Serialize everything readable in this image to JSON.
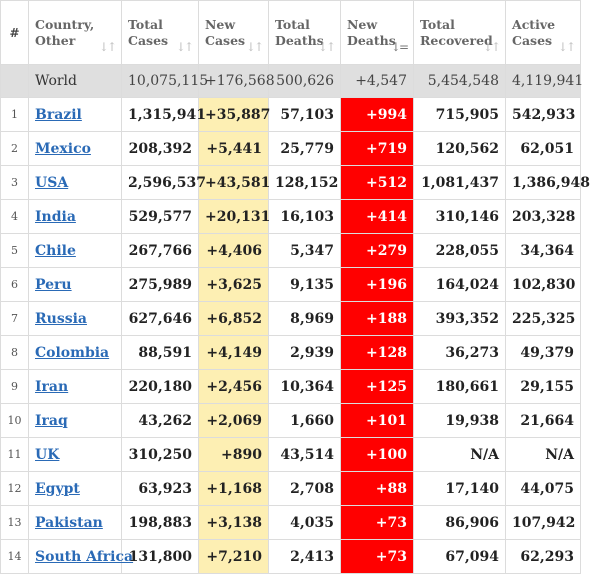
{
  "header": {
    "index": "#",
    "country": "Country, Other",
    "total_cases": "Total Cases",
    "new_cases": "New Cases",
    "total_deaths": "Total Deaths",
    "new_deaths": "New Deaths",
    "total_recovered": "Total Recovered",
    "active_cases": "Active Cases",
    "sort_glyph": "↓↑",
    "sort_active_glyph": "↓="
  },
  "world": {
    "name": "World",
    "total_cases": "10,075,115",
    "new_cases": "+176,568",
    "total_deaths": "500,626",
    "new_deaths": "+4,547",
    "total_recovered": "5,454,548",
    "active_cases": "4,119,941"
  },
  "rows": [
    {
      "idx": "1",
      "country": "Brazil",
      "total_cases": "1,315,941",
      "new_cases": "+35,887",
      "total_deaths": "57,103",
      "new_deaths": "+994",
      "total_recovered": "715,905",
      "active_cases": "542,933"
    },
    {
      "idx": "2",
      "country": "Mexico",
      "total_cases": "208,392",
      "new_cases": "+5,441",
      "total_deaths": "25,779",
      "new_deaths": "+719",
      "total_recovered": "120,562",
      "active_cases": "62,051"
    },
    {
      "idx": "3",
      "country": "USA",
      "total_cases": "2,596,537",
      "new_cases": "+43,581",
      "total_deaths": "128,152",
      "new_deaths": "+512",
      "total_recovered": "1,081,437",
      "active_cases": "1,386,948"
    },
    {
      "idx": "4",
      "country": "India",
      "total_cases": "529,577",
      "new_cases": "+20,131",
      "total_deaths": "16,103",
      "new_deaths": "+414",
      "total_recovered": "310,146",
      "active_cases": "203,328"
    },
    {
      "idx": "5",
      "country": "Chile",
      "total_cases": "267,766",
      "new_cases": "+4,406",
      "total_deaths": "5,347",
      "new_deaths": "+279",
      "total_recovered": "228,055",
      "active_cases": "34,364"
    },
    {
      "idx": "6",
      "country": "Peru",
      "total_cases": "275,989",
      "new_cases": "+3,625",
      "total_deaths": "9,135",
      "new_deaths": "+196",
      "total_recovered": "164,024",
      "active_cases": "102,830"
    },
    {
      "idx": "7",
      "country": "Russia",
      "total_cases": "627,646",
      "new_cases": "+6,852",
      "total_deaths": "8,969",
      "new_deaths": "+188",
      "total_recovered": "393,352",
      "active_cases": "225,325"
    },
    {
      "idx": "8",
      "country": "Colombia",
      "total_cases": "88,591",
      "new_cases": "+4,149",
      "total_deaths": "2,939",
      "new_deaths": "+128",
      "total_recovered": "36,273",
      "active_cases": "49,379"
    },
    {
      "idx": "9",
      "country": "Iran",
      "total_cases": "220,180",
      "new_cases": "+2,456",
      "total_deaths": "10,364",
      "new_deaths": "+125",
      "total_recovered": "180,661",
      "active_cases": "29,155"
    },
    {
      "idx": "10",
      "country": "Iraq",
      "total_cases": "43,262",
      "new_cases": "+2,069",
      "total_deaths": "1,660",
      "new_deaths": "+101",
      "total_recovered": "19,938",
      "active_cases": "21,664"
    },
    {
      "idx": "11",
      "country": "UK",
      "total_cases": "310,250",
      "new_cases": "+890",
      "total_deaths": "43,514",
      "new_deaths": "+100",
      "total_recovered": "N/A",
      "active_cases": "N/A"
    },
    {
      "idx": "12",
      "country": "Egypt",
      "total_cases": "63,923",
      "new_cases": "+1,168",
      "total_deaths": "2,708",
      "new_deaths": "+88",
      "total_recovered": "17,140",
      "active_cases": "44,075"
    },
    {
      "idx": "13",
      "country": "Pakistan",
      "total_cases": "198,883",
      "new_cases": "+3,138",
      "total_deaths": "4,035",
      "new_deaths": "+73",
      "total_recovered": "86,906",
      "active_cases": "107,942"
    },
    {
      "idx": "14",
      "country": "South Africa",
      "total_cases": "131,800",
      "new_cases": "+7,210",
      "total_deaths": "2,413",
      "new_deaths": "+73",
      "total_recovered": "67,094",
      "active_cases": "62,293"
    }
  ],
  "colors": {
    "new_cases_bg": "#fdefb3",
    "new_deaths_bg": "#ff0000",
    "world_row_bg": "#dfdfdf",
    "link": "#2a6ab6"
  }
}
